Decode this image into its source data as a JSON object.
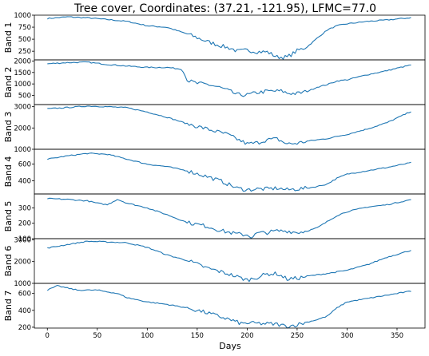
{
  "chart_data": {
    "type": "line",
    "title": "Tree cover, Coordinates: (37.21, -121.95), LFMC=77.0",
    "xlabel": "Days",
    "xlim": [
      -13,
      378
    ],
    "xticks": [
      0,
      50,
      100,
      150,
      200,
      250,
      300,
      350
    ],
    "line_color": "#1f77b4",
    "grid": false,
    "legend": "none",
    "panels": [
      {
        "ylabel": "Band 1",
        "ylim": [
          70,
          1000
        ],
        "yticks": [
          250,
          500,
          750,
          1000
        ],
        "keypoints": [
          [
            0,
            930
          ],
          [
            20,
            965
          ],
          [
            40,
            945
          ],
          [
            60,
            910
          ],
          [
            80,
            870
          ],
          [
            100,
            780
          ],
          [
            120,
            745
          ],
          [
            140,
            610
          ],
          [
            160,
            450
          ],
          [
            175,
            355
          ],
          [
            185,
            300
          ],
          [
            190,
            250
          ],
          [
            200,
            270
          ],
          [
            210,
            240
          ],
          [
            220,
            235
          ],
          [
            230,
            130
          ],
          [
            240,
            125
          ],
          [
            250,
            260
          ],
          [
            260,
            340
          ],
          [
            270,
            520
          ],
          [
            280,
            690
          ],
          [
            290,
            780
          ],
          [
            300,
            820
          ],
          [
            320,
            870
          ],
          [
            340,
            900
          ],
          [
            365,
            950
          ]
        ]
      },
      {
        "ylabel": "Band 2",
        "ylim": [
          100,
          2050
        ],
        "yticks": [
          500,
          1000,
          1500,
          2000
        ],
        "keypoints": [
          [
            0,
            1880
          ],
          [
            20,
            1930
          ],
          [
            40,
            1950
          ],
          [
            60,
            1850
          ],
          [
            80,
            1780
          ],
          [
            100,
            1720
          ],
          [
            120,
            1720
          ],
          [
            135,
            1640
          ],
          [
            140,
            1150
          ],
          [
            150,
            1020
          ],
          [
            160,
            980
          ],
          [
            170,
            880
          ],
          [
            180,
            730
          ],
          [
            190,
            530
          ],
          [
            200,
            520
          ],
          [
            210,
            620
          ],
          [
            220,
            680
          ],
          [
            235,
            690
          ],
          [
            240,
            600
          ],
          [
            250,
            580
          ],
          [
            260,
            670
          ],
          [
            270,
            860
          ],
          [
            280,
            970
          ],
          [
            290,
            1130
          ],
          [
            300,
            1180
          ],
          [
            320,
            1400
          ],
          [
            340,
            1580
          ],
          [
            365,
            1840
          ]
        ]
      },
      {
        "ylabel": "Band 3",
        "ylim": [
          1000,
          3100
        ],
        "yticks": [
          1000,
          2000,
          3000
        ],
        "keypoints": [
          [
            0,
            2900
          ],
          [
            20,
            2960
          ],
          [
            40,
            3030
          ],
          [
            60,
            3000
          ],
          [
            80,
            2950
          ],
          [
            100,
            2750
          ],
          [
            120,
            2500
          ],
          [
            140,
            2200
          ],
          [
            160,
            1950
          ],
          [
            180,
            1700
          ],
          [
            200,
            1250
          ],
          [
            210,
            1300
          ],
          [
            220,
            1450
          ],
          [
            230,
            1480
          ],
          [
            240,
            1250
          ],
          [
            250,
            1280
          ],
          [
            260,
            1380
          ],
          [
            280,
            1500
          ],
          [
            300,
            1700
          ],
          [
            320,
            1950
          ],
          [
            340,
            2250
          ],
          [
            365,
            2800
          ]
        ]
      },
      {
        "ylabel": "Band 4",
        "ylim": [
          240,
          780
        ],
        "yticks": [
          400,
          600
        ],
        "keypoints": [
          [
            0,
            660
          ],
          [
            20,
            700
          ],
          [
            40,
            730
          ],
          [
            60,
            720
          ],
          [
            80,
            660
          ],
          [
            100,
            600
          ],
          [
            120,
            570
          ],
          [
            140,
            520
          ],
          [
            160,
            450
          ],
          [
            175,
            390
          ],
          [
            190,
            310
          ],
          [
            200,
            290
          ],
          [
            210,
            300
          ],
          [
            220,
            300
          ],
          [
            230,
            310
          ],
          [
            240,
            290
          ],
          [
            250,
            300
          ],
          [
            260,
            310
          ],
          [
            270,
            330
          ],
          [
            280,
            360
          ],
          [
            290,
            430
          ],
          [
            300,
            480
          ],
          [
            320,
            520
          ],
          [
            340,
            560
          ],
          [
            365,
            620
          ]
        ]
      },
      {
        "ylabel": "Band 5",
        "ylim": [
          100,
          390
        ],
        "yticks": [
          100,
          200,
          300
        ],
        "keypoints": [
          [
            0,
            360
          ],
          [
            20,
            355
          ],
          [
            40,
            345
          ],
          [
            50,
            330
          ],
          [
            60,
            320
          ],
          [
            70,
            355
          ],
          [
            80,
            330
          ],
          [
            100,
            300
          ],
          [
            120,
            255
          ],
          [
            140,
            205
          ],
          [
            160,
            180
          ],
          [
            175,
            150
          ],
          [
            190,
            130
          ],
          [
            200,
            125
          ],
          [
            205,
            110
          ],
          [
            210,
            135
          ],
          [
            220,
            140
          ],
          [
            230,
            150
          ],
          [
            240,
            150
          ],
          [
            250,
            140
          ],
          [
            260,
            150
          ],
          [
            270,
            170
          ],
          [
            280,
            210
          ],
          [
            290,
            250
          ],
          [
            300,
            275
          ],
          [
            320,
            305
          ],
          [
            340,
            320
          ],
          [
            365,
            355
          ]
        ]
      },
      {
        "ylabel": "Band 6",
        "ylim": [
          1000,
          3050
        ],
        "yticks": [
          1000,
          2000,
          3000
        ],
        "keypoints": [
          [
            0,
            2620
          ],
          [
            20,
            2780
          ],
          [
            40,
            2930
          ],
          [
            60,
            2900
          ],
          [
            80,
            2860
          ],
          [
            100,
            2650
          ],
          [
            120,
            2300
          ],
          [
            140,
            2050
          ],
          [
            160,
            1700
          ],
          [
            180,
            1450
          ],
          [
            200,
            1150
          ],
          [
            210,
            1280
          ],
          [
            220,
            1430
          ],
          [
            230,
            1440
          ],
          [
            240,
            1200
          ],
          [
            250,
            1230
          ],
          [
            260,
            1330
          ],
          [
            280,
            1450
          ],
          [
            300,
            1600
          ],
          [
            320,
            1850
          ],
          [
            340,
            2200
          ],
          [
            365,
            2530
          ]
        ]
      },
      {
        "ylabel": "Band 7",
        "ylim": [
          190,
          720
        ],
        "yticks": [
          200,
          400,
          600
        ],
        "keypoints": [
          [
            0,
            640
          ],
          [
            10,
            690
          ],
          [
            30,
            640
          ],
          [
            50,
            640
          ],
          [
            70,
            600
          ],
          [
            80,
            550
          ],
          [
            100,
            500
          ],
          [
            120,
            470
          ],
          [
            140,
            430
          ],
          [
            150,
            400
          ],
          [
            160,
            370
          ],
          [
            180,
            300
          ],
          [
            195,
            240
          ],
          [
            200,
            250
          ],
          [
            210,
            245
          ],
          [
            220,
            240
          ],
          [
            230,
            235
          ],
          [
            240,
            210
          ],
          [
            250,
            230
          ],
          [
            260,
            260
          ],
          [
            270,
            290
          ],
          [
            280,
            330
          ],
          [
            290,
            430
          ],
          [
            300,
            500
          ],
          [
            320,
            540
          ],
          [
            340,
            580
          ],
          [
            365,
            630
          ]
        ]
      }
    ]
  }
}
